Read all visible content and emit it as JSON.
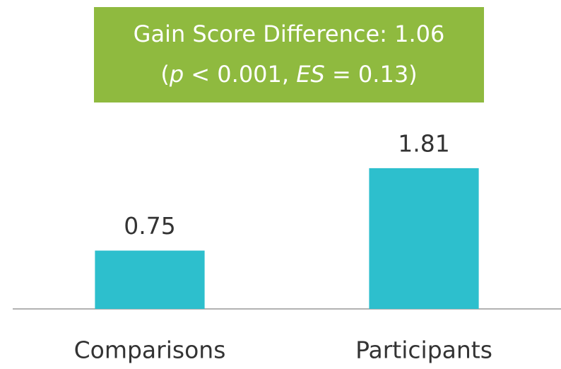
{
  "chart_data": {
    "type": "bar",
    "title": "Gain Score Difference: 1.06",
    "subtitle": [
      "(",
      "p",
      " < 0.001, ",
      "ES",
      " = 0.13)"
    ],
    "categories": [
      "Comparisons",
      "Participants"
    ],
    "values": [
      0.75,
      1.81
    ],
    "color": "#2dbfcd",
    "annotation_color": "#8fba3f",
    "ylim": [
      0,
      3.5
    ]
  }
}
